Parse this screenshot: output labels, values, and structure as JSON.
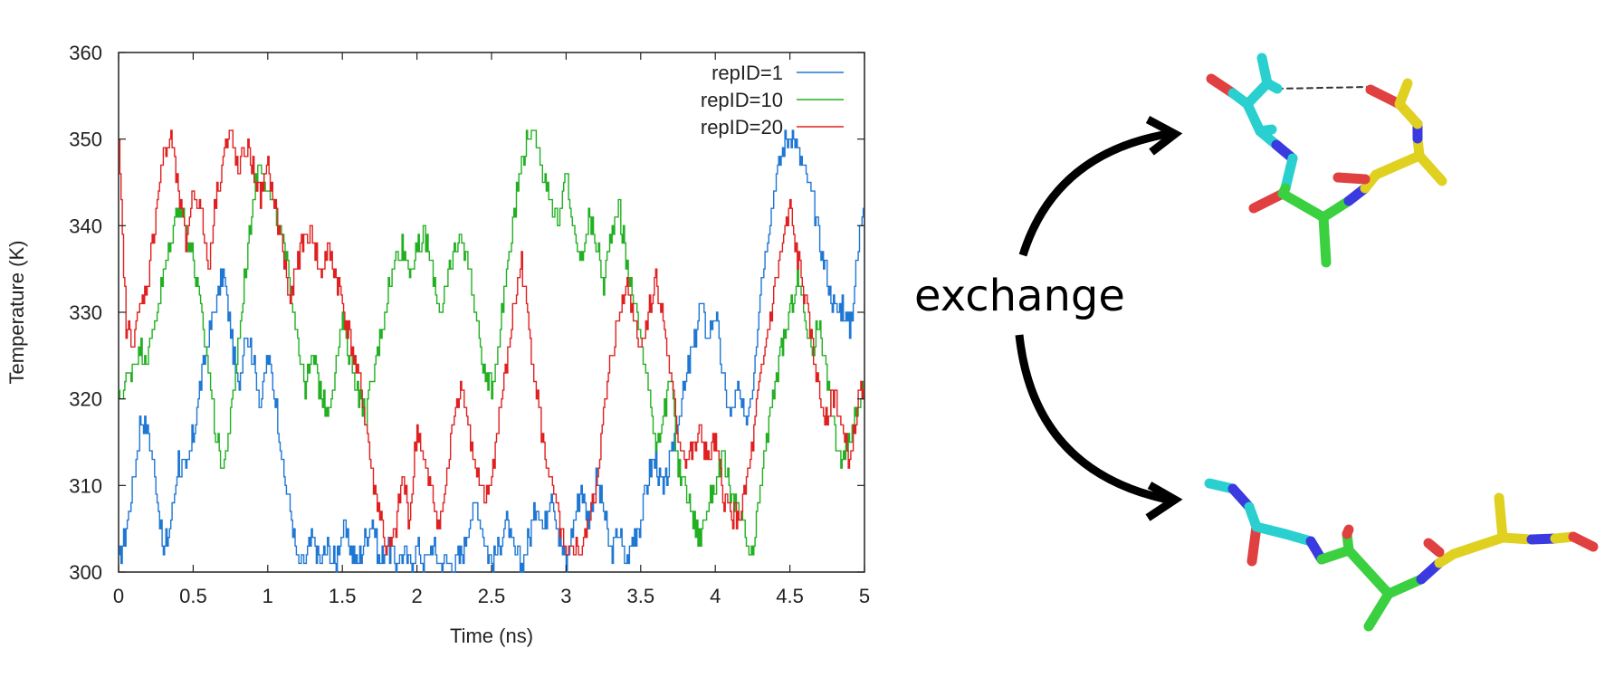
{
  "chart_data": {
    "type": "line",
    "title": "",
    "xlabel": "Time (ns)",
    "ylabel": "Temperature (K)",
    "xlim": [
      0,
      5
    ],
    "ylim": [
      300,
      360
    ],
    "x_ticks": [
      "0",
      "0.5",
      "1",
      "1.5",
      "2",
      "2.5",
      "3",
      "3.5",
      "4",
      "4.5",
      "5"
    ],
    "y_ticks": [
      "300",
      "310",
      "320",
      "330",
      "340",
      "350",
      "360"
    ],
    "grid": false,
    "legend_position": "top-right",
    "style": "step",
    "series": [
      {
        "name": "repID=1",
        "color": "#1f77d4",
        "x": [
          0,
          0.05,
          0.1,
          0.15,
          0.2,
          0.25,
          0.3,
          0.35,
          0.4,
          0.45,
          0.5,
          0.55,
          0.6,
          0.65,
          0.7,
          0.75,
          0.8,
          0.85,
          0.9,
          0.95,
          1.0,
          1.05,
          1.1,
          1.15,
          1.2,
          1.25,
          1.3,
          1.35,
          1.4,
          1.45,
          1.5,
          1.55,
          1.6,
          1.65,
          1.7,
          1.75,
          1.8,
          1.85,
          1.9,
          1.95,
          2.0,
          2.05,
          2.1,
          2.15,
          2.2,
          2.25,
          2.3,
          2.35,
          2.4,
          2.45,
          2.5,
          2.55,
          2.6,
          2.65,
          2.7,
          2.75,
          2.8,
          2.85,
          2.9,
          2.95,
          3.0,
          3.05,
          3.1,
          3.15,
          3.2,
          3.25,
          3.3,
          3.35,
          3.4,
          3.45,
          3.5,
          3.55,
          3.6,
          3.65,
          3.7,
          3.75,
          3.8,
          3.85,
          3.9,
          3.95,
          4.0,
          4.05,
          4.1,
          4.15,
          4.2,
          4.25,
          4.3,
          4.35,
          4.4,
          4.45,
          4.5,
          4.55,
          4.6,
          4.65,
          4.7,
          4.75,
          4.8,
          4.85,
          4.9,
          4.95,
          5.0
        ],
        "y": [
          301,
          305,
          311,
          318,
          316,
          310,
          302,
          306,
          313,
          311,
          316,
          322,
          327,
          331,
          335,
          328,
          321,
          328,
          325,
          319,
          325,
          320,
          312,
          307,
          301,
          301,
          304,
          301,
          303,
          301,
          305,
          303,
          301,
          304,
          306,
          301,
          303,
          301,
          302,
          301,
          303,
          301,
          303,
          301,
          301,
          301,
          302,
          306,
          308,
          304,
          301,
          303,
          306,
          302,
          301,
          304,
          308,
          305,
          310,
          304,
          301,
          306,
          310,
          306,
          311,
          307,
          302,
          305,
          301,
          304,
          306,
          311,
          313,
          309,
          313,
          318,
          322,
          326,
          331,
          327,
          330,
          322,
          318,
          321,
          317,
          322,
          333,
          339,
          345,
          349,
          351,
          349,
          346,
          343,
          338,
          334,
          330,
          331,
          328,
          336,
          345
        ]
      },
      {
        "name": "repID=10",
        "color": "#22b022",
        "x": [
          0,
          0.05,
          0.1,
          0.15,
          0.2,
          0.25,
          0.3,
          0.35,
          0.4,
          0.45,
          0.5,
          0.55,
          0.6,
          0.65,
          0.7,
          0.75,
          0.8,
          0.85,
          0.9,
          0.95,
          1.0,
          1.05,
          1.1,
          1.15,
          1.2,
          1.25,
          1.3,
          1.35,
          1.4,
          1.45,
          1.5,
          1.55,
          1.6,
          1.65,
          1.7,
          1.75,
          1.8,
          1.85,
          1.9,
          1.95,
          2.0,
          2.05,
          2.1,
          2.15,
          2.2,
          2.25,
          2.3,
          2.35,
          2.4,
          2.45,
          2.5,
          2.55,
          2.6,
          2.65,
          2.7,
          2.75,
          2.8,
          2.85,
          2.9,
          2.95,
          3.0,
          3.05,
          3.1,
          3.15,
          3.2,
          3.25,
          3.3,
          3.35,
          3.4,
          3.45,
          3.5,
          3.55,
          3.6,
          3.65,
          3.7,
          3.75,
          3.8,
          3.85,
          3.9,
          3.95,
          4.0,
          4.05,
          4.1,
          4.15,
          4.2,
          4.25,
          4.3,
          4.35,
          4.4,
          4.45,
          4.5,
          4.55,
          4.6,
          4.65,
          4.7,
          4.75,
          4.8,
          4.85,
          4.9,
          4.95,
          5.0
        ],
        "y": [
          320,
          322,
          324,
          326,
          325,
          330,
          334,
          338,
          343,
          340,
          336,
          330,
          324,
          316,
          312,
          318,
          326,
          335,
          343,
          348,
          344,
          341,
          338,
          333,
          327,
          321,
          325,
          321,
          319,
          323,
          329,
          325,
          321,
          318,
          322,
          327,
          332,
          336,
          338,
          335,
          337,
          339,
          335,
          330,
          333,
          337,
          339,
          335,
          329,
          323,
          321,
          327,
          335,
          342,
          347,
          351,
          350,
          346,
          343,
          340,
          346,
          339,
          336,
          341,
          338,
          333,
          339,
          343,
          336,
          332,
          327,
          321,
          315,
          318,
          322,
          312,
          310,
          306,
          304,
          308,
          310,
          313,
          309,
          307,
          304,
          301,
          310,
          316,
          322,
          326,
          330,
          334,
          329,
          326,
          329,
          322,
          316,
          312,
          315,
          319,
          323
        ]
      },
      {
        "name": "repID=20",
        "color": "#e02020",
        "x": [
          0,
          0.05,
          0.1,
          0.15,
          0.2,
          0.25,
          0.3,
          0.35,
          0.4,
          0.45,
          0.5,
          0.55,
          0.6,
          0.65,
          0.7,
          0.75,
          0.8,
          0.85,
          0.9,
          0.95,
          1.0,
          1.05,
          1.1,
          1.15,
          1.2,
          1.25,
          1.3,
          1.35,
          1.4,
          1.45,
          1.5,
          1.55,
          1.6,
          1.65,
          1.7,
          1.75,
          1.8,
          1.85,
          1.9,
          1.95,
          2.0,
          2.05,
          2.1,
          2.15,
          2.2,
          2.25,
          2.3,
          2.35,
          2.4,
          2.45,
          2.5,
          2.55,
          2.6,
          2.65,
          2.7,
          2.75,
          2.8,
          2.85,
          2.9,
          2.95,
          3.0,
          3.05,
          3.1,
          3.15,
          3.2,
          3.25,
          3.3,
          3.35,
          3.4,
          3.45,
          3.5,
          3.55,
          3.6,
          3.65,
          3.7,
          3.75,
          3.8,
          3.85,
          3.9,
          3.95,
          4.0,
          4.05,
          4.1,
          4.15,
          4.2,
          4.25,
          4.3,
          4.35,
          4.4,
          4.45,
          4.5,
          4.55,
          4.6,
          4.65,
          4.7,
          4.75,
          4.8,
          4.85,
          4.9,
          4.95,
          5.0
        ],
        "y": [
          349,
          328,
          327,
          331,
          334,
          342,
          348,
          350,
          344,
          338,
          344,
          342,
          335,
          343,
          348,
          351,
          346,
          349,
          347,
          343,
          347,
          342,
          337,
          331,
          336,
          339,
          339,
          334,
          337,
          335,
          331,
          327,
          323,
          318,
          311,
          307,
          302,
          304,
          311,
          306,
          317,
          312,
          309,
          305,
          311,
          319,
          322,
          316,
          311,
          308,
          311,
          318,
          324,
          331,
          336,
          328,
          321,
          314,
          310,
          306,
          301,
          303,
          302,
          306,
          310,
          318,
          325,
          329,
          334,
          330,
          326,
          330,
          334,
          329,
          322,
          316,
          313,
          314,
          316,
          313,
          315,
          309,
          307,
          306,
          309,
          315,
          322,
          328,
          333,
          338,
          342,
          336,
          332,
          326,
          320,
          318,
          321,
          316,
          313,
          319,
          323
        ]
      }
    ]
  },
  "diagram": {
    "exchange_label": "exchange",
    "top_molecule_icon": "peptide-folded-hbond-icon",
    "bottom_molecule_icon": "peptide-extended-icon",
    "arrow_icon": "curved-double-arrow-icon"
  }
}
